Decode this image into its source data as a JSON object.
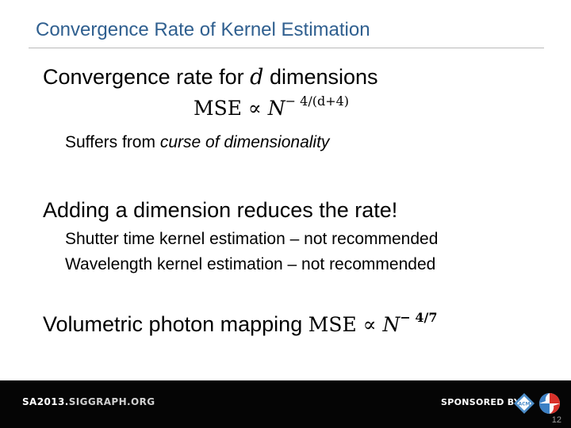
{
  "slide": {
    "title": "Convergence Rate of Kernel Estimation",
    "line1_prefix": "Convergence rate for ",
    "line1_var": "d",
    "line1_suffix": " dimensions",
    "formula1_lhs": "MSE ∝ ",
    "formula1_base": "N",
    "formula1_exp": "− 4/(d+4)",
    "curse_prefix": "Suffers from ",
    "curse_italic": "curse of dimensionality",
    "adding_dimension": "Adding a dimension reduces the rate!",
    "shutter": "Shutter time kernel estimation – not recommended",
    "wavelength": "Wavelength kernel estimation – not recommended",
    "volumetric_text": "Volumetric photon mapping ",
    "formula2_lhs": "MSE ∝ ",
    "formula2_base": "N",
    "formula2_exp": "− 4/7"
  },
  "footer": {
    "site_part1": "SA2013.",
    "site_part2": "SIGGRAPH.ORG",
    "sponsored": "SPONSORED BY",
    "page_number": "12",
    "acm_logo_text": "ACM",
    "acm_logo_icon": "acm-logo",
    "siggraph_logo_icon": "siggraph-logo"
  },
  "colors": {
    "title": "#2f5f8f",
    "footer_bg": "#050505",
    "acm_blue": "#4d8ec9",
    "siggraph_red": "#d8312a",
    "siggraph_blue": "#3b7fc4"
  }
}
